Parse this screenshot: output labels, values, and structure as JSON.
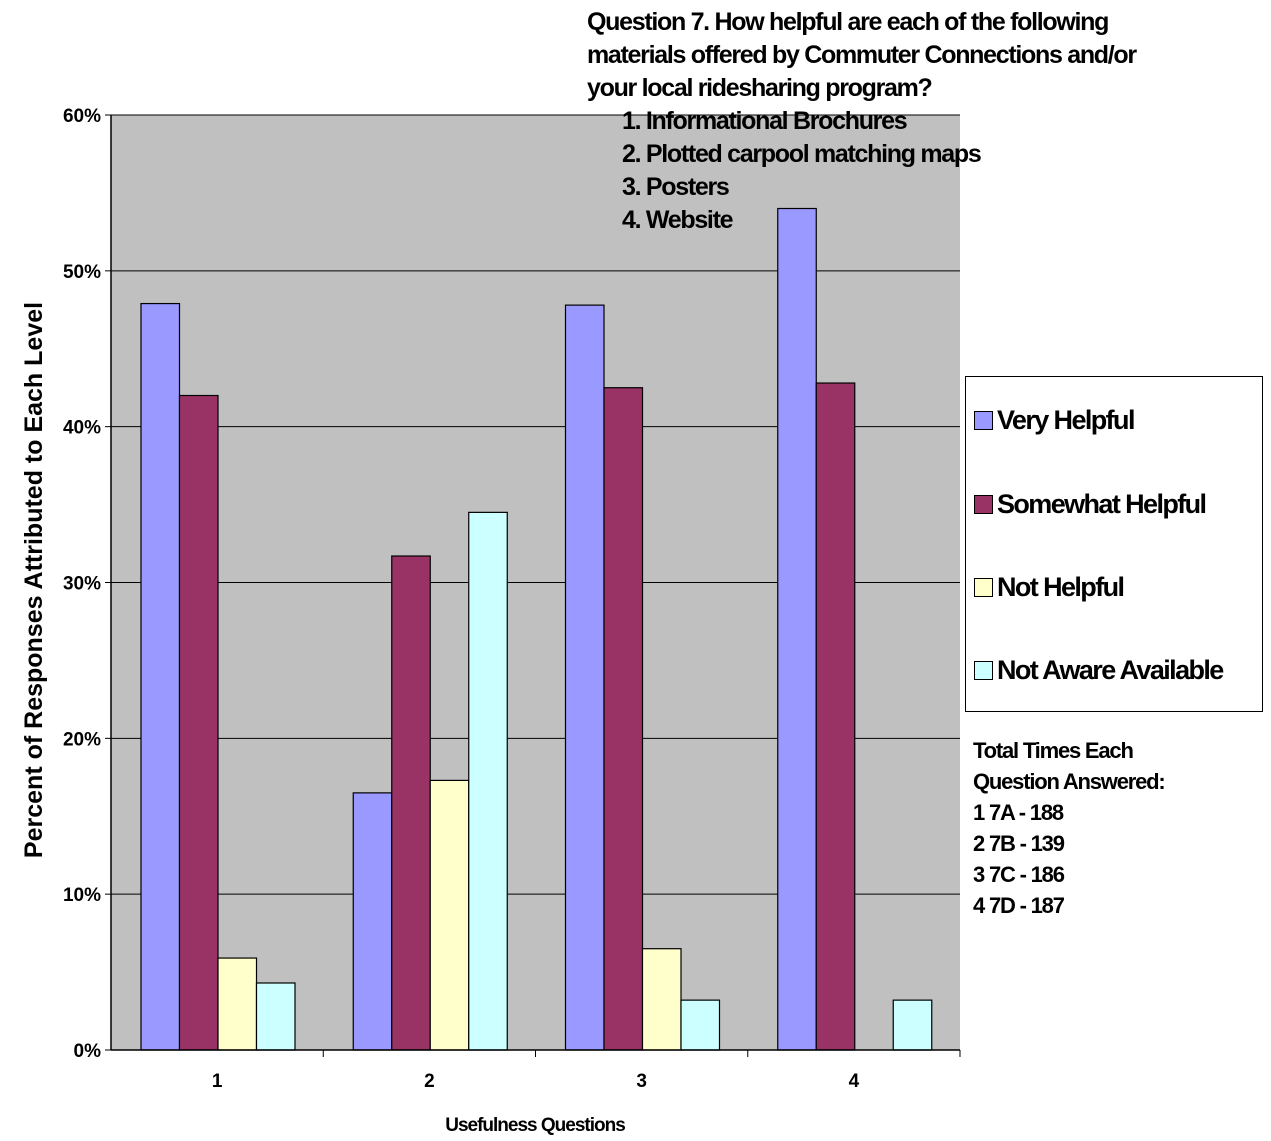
{
  "chart_data": {
    "type": "bar",
    "title_lines": [
      "Question 7.  How helpful are each of the following",
      "materials offered by Commuter Connections and/or",
      "your local ridesharing program?"
    ],
    "title_items": [
      "1.  Informational Brochures",
      "2.  Plotted carpool matching maps",
      "3.  Posters",
      "4.  Website"
    ],
    "categories": [
      "1",
      "2",
      "3",
      "4"
    ],
    "series": [
      {
        "name": "Very Helpful",
        "color": "#9999ff",
        "values": [
          47.9,
          16.5,
          47.8,
          54.0
        ]
      },
      {
        "name": "Somewhat Helpful",
        "color": "#993366",
        "values": [
          42.0,
          31.7,
          42.5,
          42.8
        ]
      },
      {
        "name": "Not Helpful",
        "color": "#ffffcc",
        "values": [
          5.9,
          17.3,
          6.5,
          0
        ]
      },
      {
        "name": "Not Aware Available",
        "color": "#ccffff",
        "values": [
          4.3,
          34.5,
          3.2,
          3.2
        ]
      }
    ],
    "ylim": [
      0,
      60
    ],
    "yticks": [
      "0%",
      "10%",
      "20%",
      "30%",
      "40%",
      "50%",
      "60%"
    ],
    "xlabel": "Usefulness Questions",
    "ylabel": "Percent of Responses Attributed to Each Level",
    "plot_background": "#c0c0c0",
    "grid": true,
    "legend_position": "right",
    "notes": [
      "Total Times Each",
      "Question Answered:",
      "1 7A - 188",
      "2 7B -  139",
      "3 7C -  186",
      "4 7D -  187"
    ]
  }
}
